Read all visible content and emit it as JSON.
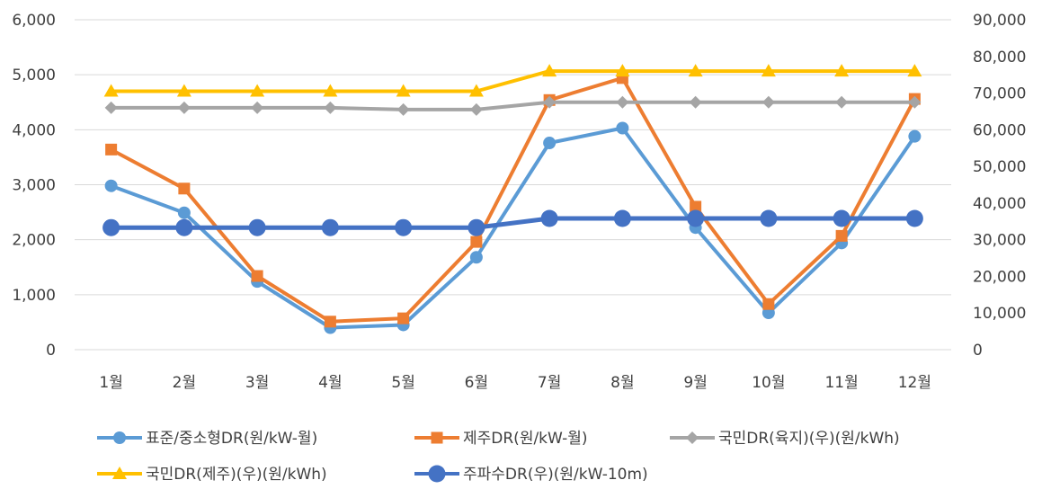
{
  "chart_data": {
    "type": "line",
    "categories": [
      "1월",
      "2월",
      "3월",
      "4월",
      "5월",
      "6월",
      "7월",
      "8월",
      "9월",
      "10월",
      "11월",
      "12월"
    ],
    "y_left": {
      "range": [
        0,
        6000
      ],
      "ticks": [
        "0",
        "1,000",
        "2,000",
        "3,000",
        "4,000",
        "5,000",
        "6,000"
      ]
    },
    "y_right": {
      "range": [
        0,
        90000
      ],
      "ticks": [
        "0",
        "10,000",
        "20,000",
        "30,000",
        "40,000",
        "50,000",
        "60,000",
        "70,000",
        "80,000",
        "90,000"
      ]
    },
    "grid": true,
    "legend_position": "bottom",
    "series": [
      {
        "name": "표준/중소형DR(원/kW-월)",
        "axis": "left",
        "color": "#5B9BD5",
        "marker": "circle",
        "values": [
          2980,
          2490,
          1240,
          400,
          450,
          1680,
          3760,
          4030,
          2220,
          670,
          1940,
          3880
        ]
      },
      {
        "name": "제주DR(원/kW-월)",
        "axis": "left",
        "color": "#ED7D31",
        "marker": "square",
        "values": [
          3640,
          2930,
          1340,
          510,
          570,
          1960,
          4540,
          4940,
          2600,
          830,
          2070,
          4560
        ]
      },
      {
        "name": "국민DR(육지)(우)(원/kWh)",
        "axis": "right",
        "color": "#A5A5A5",
        "marker": "diamond",
        "values": [
          66000,
          66000,
          66000,
          66000,
          65500,
          65500,
          67500,
          67500,
          67500,
          67500,
          67500,
          67500
        ]
      },
      {
        "name": "국민DR(제주)(우)(원/kWh)",
        "axis": "right",
        "color": "#FFC000",
        "marker": "triangle",
        "values": [
          70500,
          70500,
          70500,
          70500,
          70500,
          70500,
          76000,
          76000,
          76000,
          76000,
          76000,
          76000
        ]
      },
      {
        "name": "주파수DR(우)(원/kW-10m)",
        "axis": "right",
        "color": "#4472C4",
        "marker": "circle-large",
        "values": [
          33300,
          33300,
          33300,
          33300,
          33300,
          33300,
          35800,
          35800,
          35800,
          35800,
          35800,
          35800
        ]
      }
    ]
  }
}
